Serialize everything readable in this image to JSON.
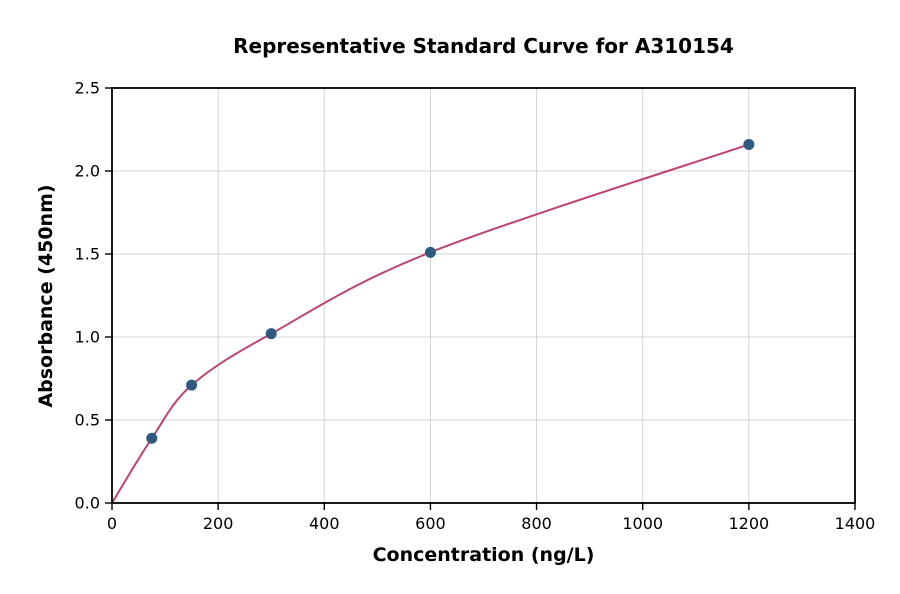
{
  "chart_data": {
    "type": "scatter",
    "title": "Representative Standard Curve for A310154",
    "xlabel": "Concentration (ng/L)",
    "ylabel": "Absorbance (450nm)",
    "xlim": [
      0,
      1400
    ],
    "ylim": [
      0,
      2.5
    ],
    "xticks": [
      0,
      200,
      400,
      600,
      800,
      1000,
      1200,
      1400
    ],
    "xtick_labels": [
      "0",
      "200",
      "400",
      "600",
      "800",
      "1000",
      "1200",
      "1400"
    ],
    "yticks": [
      0,
      0.5,
      1.0,
      1.5,
      2.0,
      2.5
    ],
    "ytick_labels": [
      "0.0",
      "0.5",
      "1.0",
      "1.5",
      "2.0",
      "2.5"
    ],
    "grid": true,
    "legend": "none",
    "series": [
      {
        "name": "standard-points",
        "type": "scatter",
        "color": "#2e5a80",
        "x": [
          75,
          150,
          300,
          600,
          1200
        ],
        "y": [
          0.39,
          0.71,
          1.02,
          1.51,
          2.16
        ]
      },
      {
        "name": "fitted-curve",
        "type": "line",
        "color": "#bf4273",
        "x": [
          0,
          75,
          150,
          300,
          600,
          1200
        ],
        "y": [
          0,
          0.39,
          0.71,
          1.02,
          1.51,
          2.16
        ]
      }
    ],
    "colors": {
      "grid": "#d4d4d4",
      "axis": "#000000",
      "background": "#ffffff"
    }
  }
}
